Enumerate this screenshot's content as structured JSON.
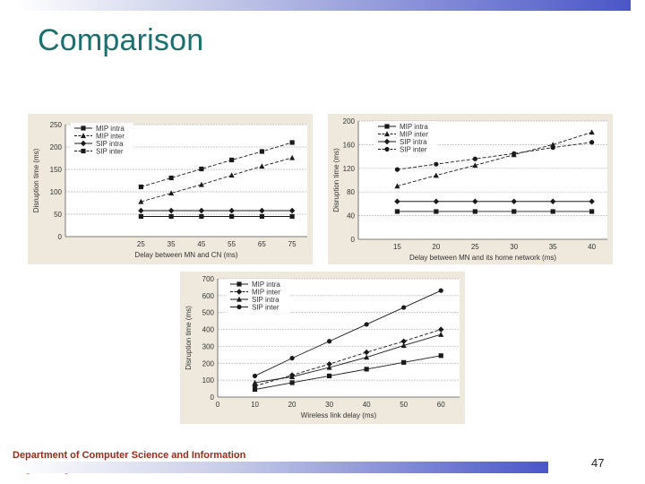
{
  "slide": {
    "title": "Comparison",
    "department": "Department of Computer Science and Information Engineering",
    "page_number": "47"
  },
  "chart_data": [
    {
      "type": "line",
      "title": "",
      "xlabel": "Delay between MN and CN (ms)",
      "ylabel": "Disruption time (ms)",
      "xlim": [
        0,
        80
      ],
      "ylim": [
        0,
        250
      ],
      "x_ticks": [
        25,
        35,
        45,
        55,
        65,
        75
      ],
      "y_ticks": [
        0,
        50,
        100,
        150,
        200,
        250
      ],
      "grid": "horizontal",
      "legend_position": "top-left",
      "series": [
        {
          "name": "MIP intra",
          "marker": "square",
          "dash": "solid",
          "x": [
            25,
            35,
            45,
            55,
            65,
            75
          ],
          "y": [
            45,
            45,
            45,
            45,
            45,
            45
          ]
        },
        {
          "name": "MIP inter",
          "marker": "triangle",
          "dash": "dashed",
          "x": [
            25,
            35,
            45,
            55,
            65,
            75
          ],
          "y": [
            78,
            97,
            116,
            137,
            157,
            176
          ]
        },
        {
          "name": "SIP intra",
          "marker": "diamond",
          "dash": "solid",
          "x": [
            25,
            35,
            45,
            55,
            65,
            75
          ],
          "y": [
            58,
            58,
            58,
            58,
            58,
            58
          ]
        },
        {
          "name": "SIP inter",
          "marker": "square",
          "dash": "dashed",
          "x": [
            25,
            35,
            45,
            55,
            65,
            75
          ],
          "y": [
            111,
            131,
            151,
            171,
            190,
            210
          ]
        }
      ]
    },
    {
      "type": "line",
      "title": "",
      "xlabel": "Delay between MN and its home network (ms)",
      "ylabel": "Disruption time (ms)",
      "xlim": [
        10,
        42
      ],
      "ylim": [
        0,
        200
      ],
      "x_ticks": [
        15,
        20,
        25,
        30,
        35,
        40
      ],
      "y_ticks": [
        0,
        40,
        80,
        120,
        160,
        200
      ],
      "grid": "horizontal",
      "legend_position": "top-left",
      "series": [
        {
          "name": "MIP intra",
          "marker": "square",
          "dash": "solid",
          "x": [
            15,
            20,
            25,
            30,
            35,
            40
          ],
          "y": [
            47,
            47,
            47,
            47,
            47,
            47
          ]
        },
        {
          "name": "MIP inter",
          "marker": "triangle",
          "dash": "dashed",
          "x": [
            15,
            20,
            25,
            30,
            35,
            40
          ],
          "y": [
            90,
            108,
            125,
            143,
            160,
            181
          ]
        },
        {
          "name": "SIP intra",
          "marker": "diamond",
          "dash": "solid",
          "x": [
            15,
            20,
            25,
            30,
            35,
            40
          ],
          "y": [
            64,
            64,
            64,
            64,
            64,
            64
          ]
        },
        {
          "name": "SIP inter",
          "marker": "circle",
          "dash": "dashed",
          "x": [
            15,
            20,
            25,
            30,
            35,
            40
          ],
          "y": [
            118,
            127,
            136,
            145,
            155,
            164
          ]
        }
      ]
    },
    {
      "type": "line",
      "title": "",
      "xlabel": "Wireless link delay (ms)",
      "ylabel": "Disruption time (ms)",
      "xlim": [
        0,
        65
      ],
      "ylim": [
        0,
        700
      ],
      "x_ticks": [
        0,
        10,
        20,
        30,
        40,
        50,
        60
      ],
      "y_ticks": [
        0,
        100,
        200,
        300,
        400,
        500,
        600,
        700
      ],
      "grid": "horizontal",
      "legend_position": "top-left",
      "series": [
        {
          "name": "MIP intra",
          "marker": "square",
          "dash": "solid",
          "x": [
            10,
            20,
            30,
            40,
            50,
            60
          ],
          "y": [
            45,
            85,
            125,
            165,
            205,
            245
          ]
        },
        {
          "name": "MIP inter",
          "marker": "diamond",
          "dash": "dashed",
          "x": [
            10,
            20,
            30,
            40,
            50,
            60
          ],
          "y": [
            65,
            130,
            195,
            265,
            330,
            400
          ]
        },
        {
          "name": "SIP intra",
          "marker": "triangle",
          "dash": "solid",
          "x": [
            10,
            20,
            30,
            40,
            50,
            60
          ],
          "y": [
            85,
            120,
            175,
            235,
            305,
            370
          ]
        },
        {
          "name": "SIP inter",
          "marker": "circle",
          "dash": "solid",
          "x": [
            10,
            20,
            30,
            40,
            50,
            60
          ],
          "y": [
            125,
            230,
            330,
            430,
            530,
            630
          ]
        }
      ]
    }
  ]
}
